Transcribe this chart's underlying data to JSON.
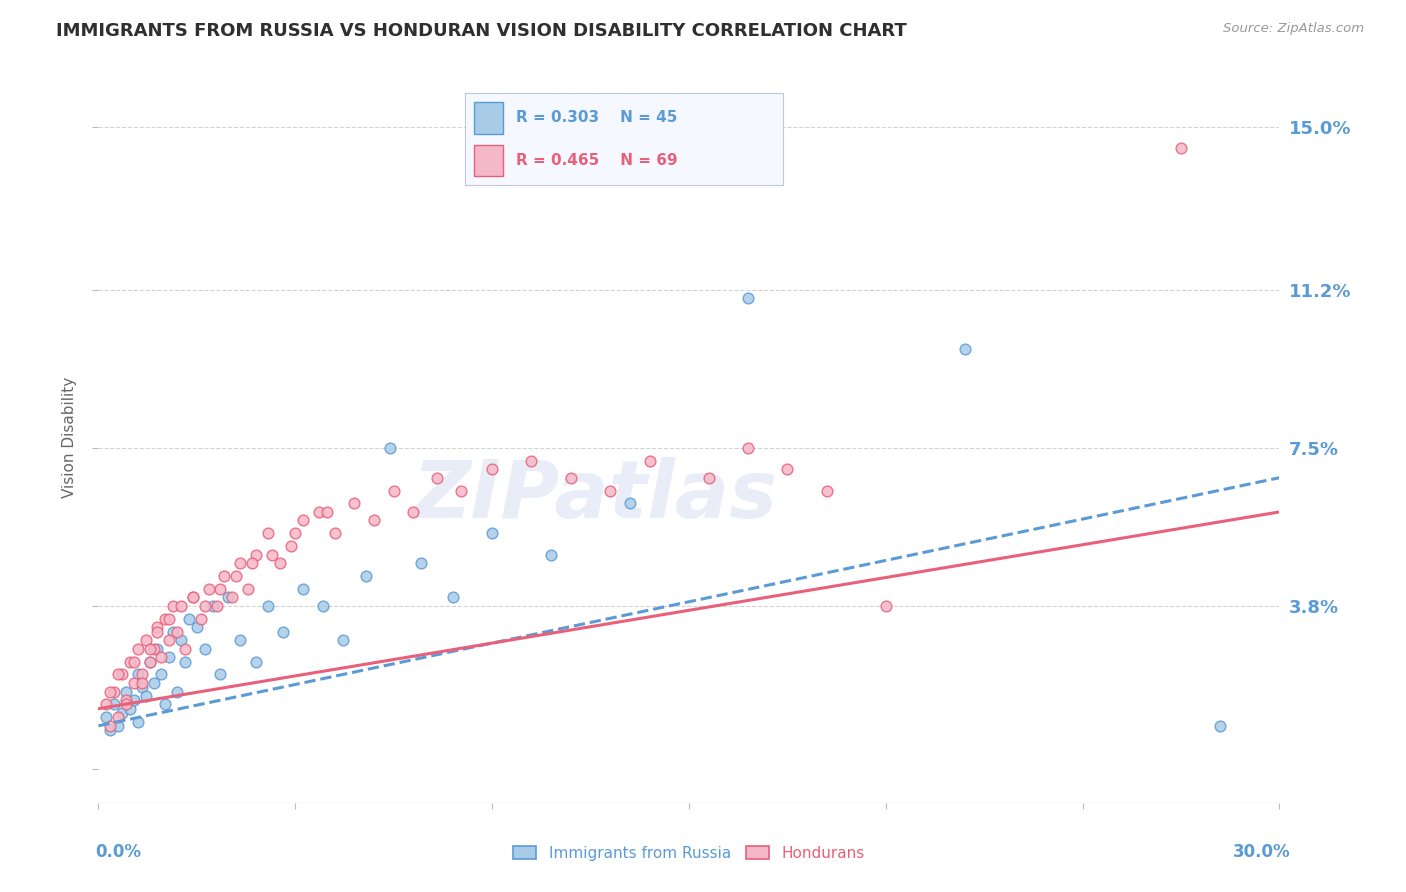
{
  "title": "IMMIGRANTS FROM RUSSIA VS HONDURAN VISION DISABILITY CORRELATION CHART",
  "source": "Source: ZipAtlas.com",
  "ylabel": "Vision Disability",
  "yticks": [
    0.0,
    0.038,
    0.075,
    0.112,
    0.15
  ],
  "ytick_labels": [
    "",
    "3.8%",
    "7.5%",
    "11.2%",
    "15.0%"
  ],
  "xlim": [
    0.0,
    0.3
  ],
  "ylim": [
    -0.008,
    0.163
  ],
  "russia_R": 0.303,
  "russia_N": 45,
  "honduran_R": 0.465,
  "honduran_N": 69,
  "russia_scatter_color": "#a8cce8",
  "honduras_scatter_color": "#f5b8c8",
  "russia_line_color": "#5b9bd5",
  "honduran_line_color": "#e8607a",
  "background_color": "#ffffff",
  "grid_color": "#c8c8c8",
  "title_color": "#2f2f2f",
  "axis_label_color": "#5b9bd5",
  "watermark": "ZIPatlas",
  "legend_box_color": "#f0f4ff",
  "russia_trend_start_y": 0.01,
  "russia_trend_end_y": 0.068,
  "honduran_trend_start_y": 0.014,
  "honduran_trend_end_y": 0.06,
  "russia_x": [
    0.002,
    0.003,
    0.004,
    0.005,
    0.006,
    0.007,
    0.008,
    0.009,
    0.01,
    0.01,
    0.011,
    0.012,
    0.013,
    0.014,
    0.015,
    0.016,
    0.017,
    0.018,
    0.019,
    0.02,
    0.021,
    0.022,
    0.023,
    0.025,
    0.027,
    0.029,
    0.031,
    0.033,
    0.036,
    0.04,
    0.043,
    0.047,
    0.052,
    0.057,
    0.062,
    0.068,
    0.074,
    0.082,
    0.09,
    0.1,
    0.115,
    0.135,
    0.165,
    0.22,
    0.285
  ],
  "russia_y": [
    0.012,
    0.009,
    0.015,
    0.01,
    0.013,
    0.018,
    0.014,
    0.016,
    0.011,
    0.022,
    0.019,
    0.017,
    0.025,
    0.02,
    0.028,
    0.022,
    0.015,
    0.026,
    0.032,
    0.018,
    0.03,
    0.025,
    0.035,
    0.033,
    0.028,
    0.038,
    0.022,
    0.04,
    0.03,
    0.025,
    0.038,
    0.032,
    0.042,
    0.038,
    0.03,
    0.045,
    0.075,
    0.048,
    0.04,
    0.055,
    0.05,
    0.062,
    0.11,
    0.098,
    0.01
  ],
  "honduran_x": [
    0.002,
    0.003,
    0.004,
    0.005,
    0.006,
    0.007,
    0.008,
    0.009,
    0.01,
    0.011,
    0.012,
    0.013,
    0.014,
    0.015,
    0.016,
    0.017,
    0.018,
    0.019,
    0.02,
    0.022,
    0.024,
    0.026,
    0.028,
    0.03,
    0.032,
    0.034,
    0.036,
    0.038,
    0.04,
    0.043,
    0.046,
    0.049,
    0.052,
    0.056,
    0.06,
    0.065,
    0.07,
    0.075,
    0.08,
    0.086,
    0.092,
    0.1,
    0.11,
    0.12,
    0.13,
    0.14,
    0.155,
    0.165,
    0.175,
    0.185,
    0.003,
    0.005,
    0.007,
    0.009,
    0.011,
    0.013,
    0.015,
    0.018,
    0.021,
    0.024,
    0.027,
    0.031,
    0.035,
    0.039,
    0.044,
    0.05,
    0.058,
    0.2,
    0.275
  ],
  "honduran_y": [
    0.015,
    0.01,
    0.018,
    0.012,
    0.022,
    0.016,
    0.025,
    0.02,
    0.028,
    0.022,
    0.03,
    0.025,
    0.028,
    0.033,
    0.026,
    0.035,
    0.03,
    0.038,
    0.032,
    0.028,
    0.04,
    0.035,
    0.042,
    0.038,
    0.045,
    0.04,
    0.048,
    0.042,
    0.05,
    0.055,
    0.048,
    0.052,
    0.058,
    0.06,
    0.055,
    0.062,
    0.058,
    0.065,
    0.06,
    0.068,
    0.065,
    0.07,
    0.072,
    0.068,
    0.065,
    0.072,
    0.068,
    0.075,
    0.07,
    0.065,
    0.018,
    0.022,
    0.015,
    0.025,
    0.02,
    0.028,
    0.032,
    0.035,
    0.038,
    0.04,
    0.038,
    0.042,
    0.045,
    0.048,
    0.05,
    0.055,
    0.06,
    0.038,
    0.145
  ]
}
